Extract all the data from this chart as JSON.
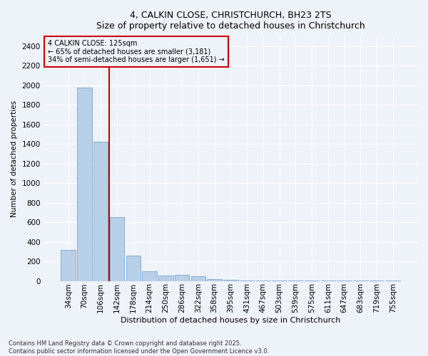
{
  "title_line1": "4, CALKIN CLOSE, CHRISTCHURCH, BH23 2TS",
  "title_line2": "Size of property relative to detached houses in Christchurch",
  "xlabel": "Distribution of detached houses by size in Christchurch",
  "ylabel": "Number of detached properties",
  "categories": [
    "34sqm",
    "70sqm",
    "106sqm",
    "142sqm",
    "178sqm",
    "214sqm",
    "250sqm",
    "286sqm",
    "322sqm",
    "358sqm",
    "395sqm",
    "431sqm",
    "467sqm",
    "503sqm",
    "539sqm",
    "575sqm",
    "611sqm",
    "647sqm",
    "683sqm",
    "719sqm",
    "755sqm"
  ],
  "values": [
    320,
    1980,
    1420,
    650,
    260,
    100,
    55,
    65,
    50,
    20,
    10,
    5,
    5,
    5,
    5,
    5,
    5,
    5,
    5,
    5,
    5
  ],
  "bar_color": "#b8cfe8",
  "bar_edge_color": "#7aa8d0",
  "vline_x": 2.5,
  "vline_color": "#cc0000",
  "annotation_title": "4 CALKIN CLOSE: 125sqm",
  "annotation_line2": "← 65% of detached houses are smaller (3,181)",
  "annotation_line3": "34% of semi-detached houses are larger (1,651) →",
  "annotation_box_color": "#cc0000",
  "ylim": [
    0,
    2500
  ],
  "yticks": [
    0,
    200,
    400,
    600,
    800,
    1000,
    1200,
    1400,
    1600,
    1800,
    2000,
    2200,
    2400
  ],
  "footnote1": "Contains HM Land Registry data © Crown copyright and database right 2025.",
  "footnote2": "Contains public sector information licensed under the Open Government Licence v3.0.",
  "bg_color": "#eef2f9",
  "grid_color": "#ffffff",
  "title_fontsize": 9,
  "xlabel_fontsize": 8,
  "ylabel_fontsize": 7.5,
  "tick_fontsize": 7.5,
  "annot_fontsize": 7,
  "footnote_fontsize": 6
}
